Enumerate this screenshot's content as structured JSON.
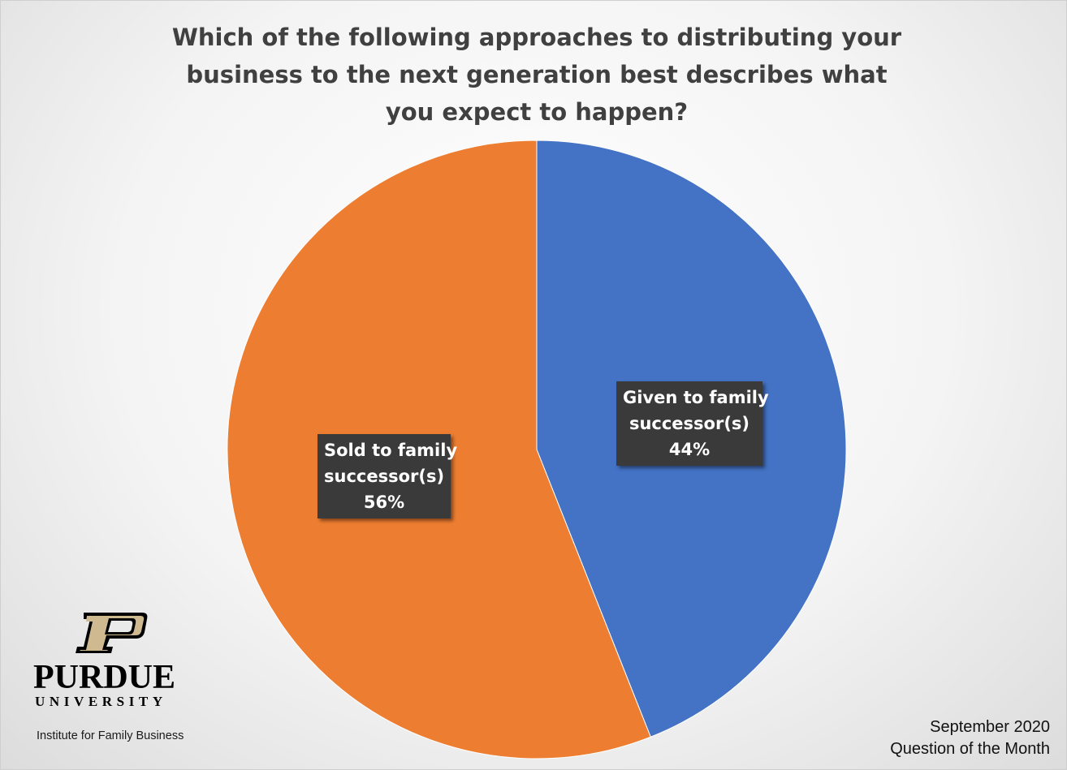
{
  "chart_data": {
    "type": "pie",
    "title": "Which of the following approaches to distributing your business to the next generation best describes what you expect to happen?",
    "slices": [
      {
        "label": "Given to family successor(s)",
        "value": 44,
        "display": "44%",
        "color": "#4472C4"
      },
      {
        "label": "Sold to family successor(s)",
        "value": 56,
        "display": "56%",
        "color": "#ED7D31"
      }
    ],
    "start_angle": "12 o'clock",
    "direction": "clockwise",
    "legend": "none"
  },
  "labels": {
    "given_line1": "Given to family",
    "given_line2": "successor(s)",
    "given_pct": "44%",
    "sold_line1": "Sold to family",
    "sold_line2": "successor(s)",
    "sold_pct": "56%"
  },
  "logo": {
    "name": "PURDUE",
    "university": "UNIVERSITY",
    "institute": "Institute for Family Business",
    "mark_color": "#CFB991"
  },
  "footer": {
    "line1": "September 2020",
    "line2": "Question of the Month"
  }
}
